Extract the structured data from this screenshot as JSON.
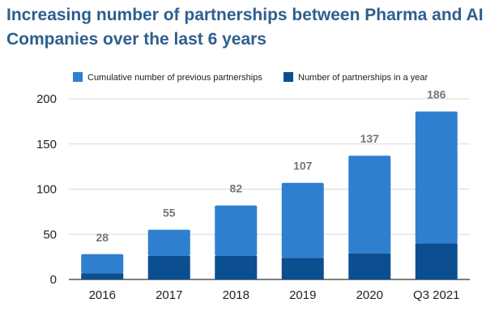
{
  "title": "Increasing number of partnerships between Pharma and AI Companies over the last 6 years",
  "chart_data": {
    "type": "bar",
    "stacked": true,
    "categories": [
      "2016",
      "2017",
      "2018",
      "2019",
      "2020",
      "Q3 2021"
    ],
    "series": [
      {
        "name": "Number of partnerships in a year",
        "color": "#0b4f91",
        "values": [
          7,
          26,
          26,
          24,
          29,
          40
        ]
      },
      {
        "name": "Cumulative number of previous partnerships",
        "color": "#2e7fcf",
        "values": [
          21,
          29,
          56,
          83,
          108,
          146
        ]
      }
    ],
    "totals": [
      28,
      55,
      82,
      107,
      137,
      186
    ],
    "ylim": [
      0,
      200
    ],
    "yticks": [
      0,
      50,
      100,
      150,
      200
    ],
    "grid": true,
    "legend": "top"
  }
}
